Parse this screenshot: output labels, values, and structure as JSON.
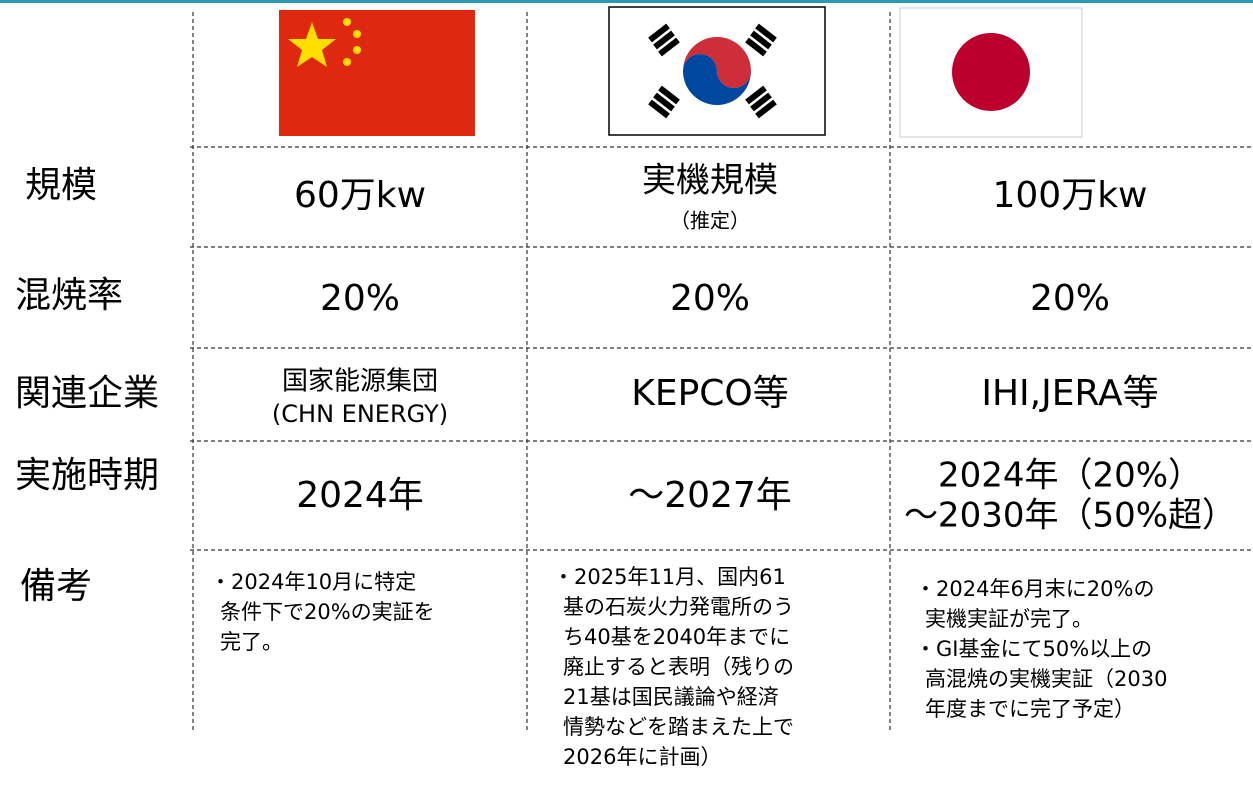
{
  "table": {
    "rows": [
      {
        "label": "規模",
        "cells": [
          [
            "60万kw"
          ],
          [
            "実機規模",
            "（推定）"
          ],
          [
            "100万kw"
          ]
        ]
      },
      {
        "label": "混焼率",
        "cells": [
          [
            "20%"
          ],
          [
            "20%"
          ],
          [
            "20%"
          ]
        ]
      },
      {
        "label": "関連企業",
        "cells": [
          [
            "国家能源集団",
            "(CHN ENERGY)"
          ],
          [
            "KEPCO等"
          ],
          [
            "IHI,JERA等"
          ]
        ]
      },
      {
        "label": "実施時期",
        "cells": [
          [
            "2024年"
          ],
          [
            "～2027年"
          ],
          [
            "2024年（20%）",
            "～2030年（50%超）"
          ]
        ]
      },
      {
        "label": "備考",
        "cells": [
          [
            "・2024年10月に特定",
            "条件下で20%の実証を",
            "完了。"
          ],
          [
            "・2025年11月、国内61",
            "基の石炭火力発電所のう",
            "ち40基を2040年までに",
            "廃止すると表明（残りの",
            "21基は国民議論や経済",
            "情勢などを踏まえた上で",
            "2026年に計画）"
          ],
          [
            "・2024年6月末に20%の",
            "実機実証が完了。",
            "・GI基金にて50%以上の",
            "高混焼の実機実証（2030",
            "年度までに完了予定）"
          ]
        ]
      }
    ]
  }
}
